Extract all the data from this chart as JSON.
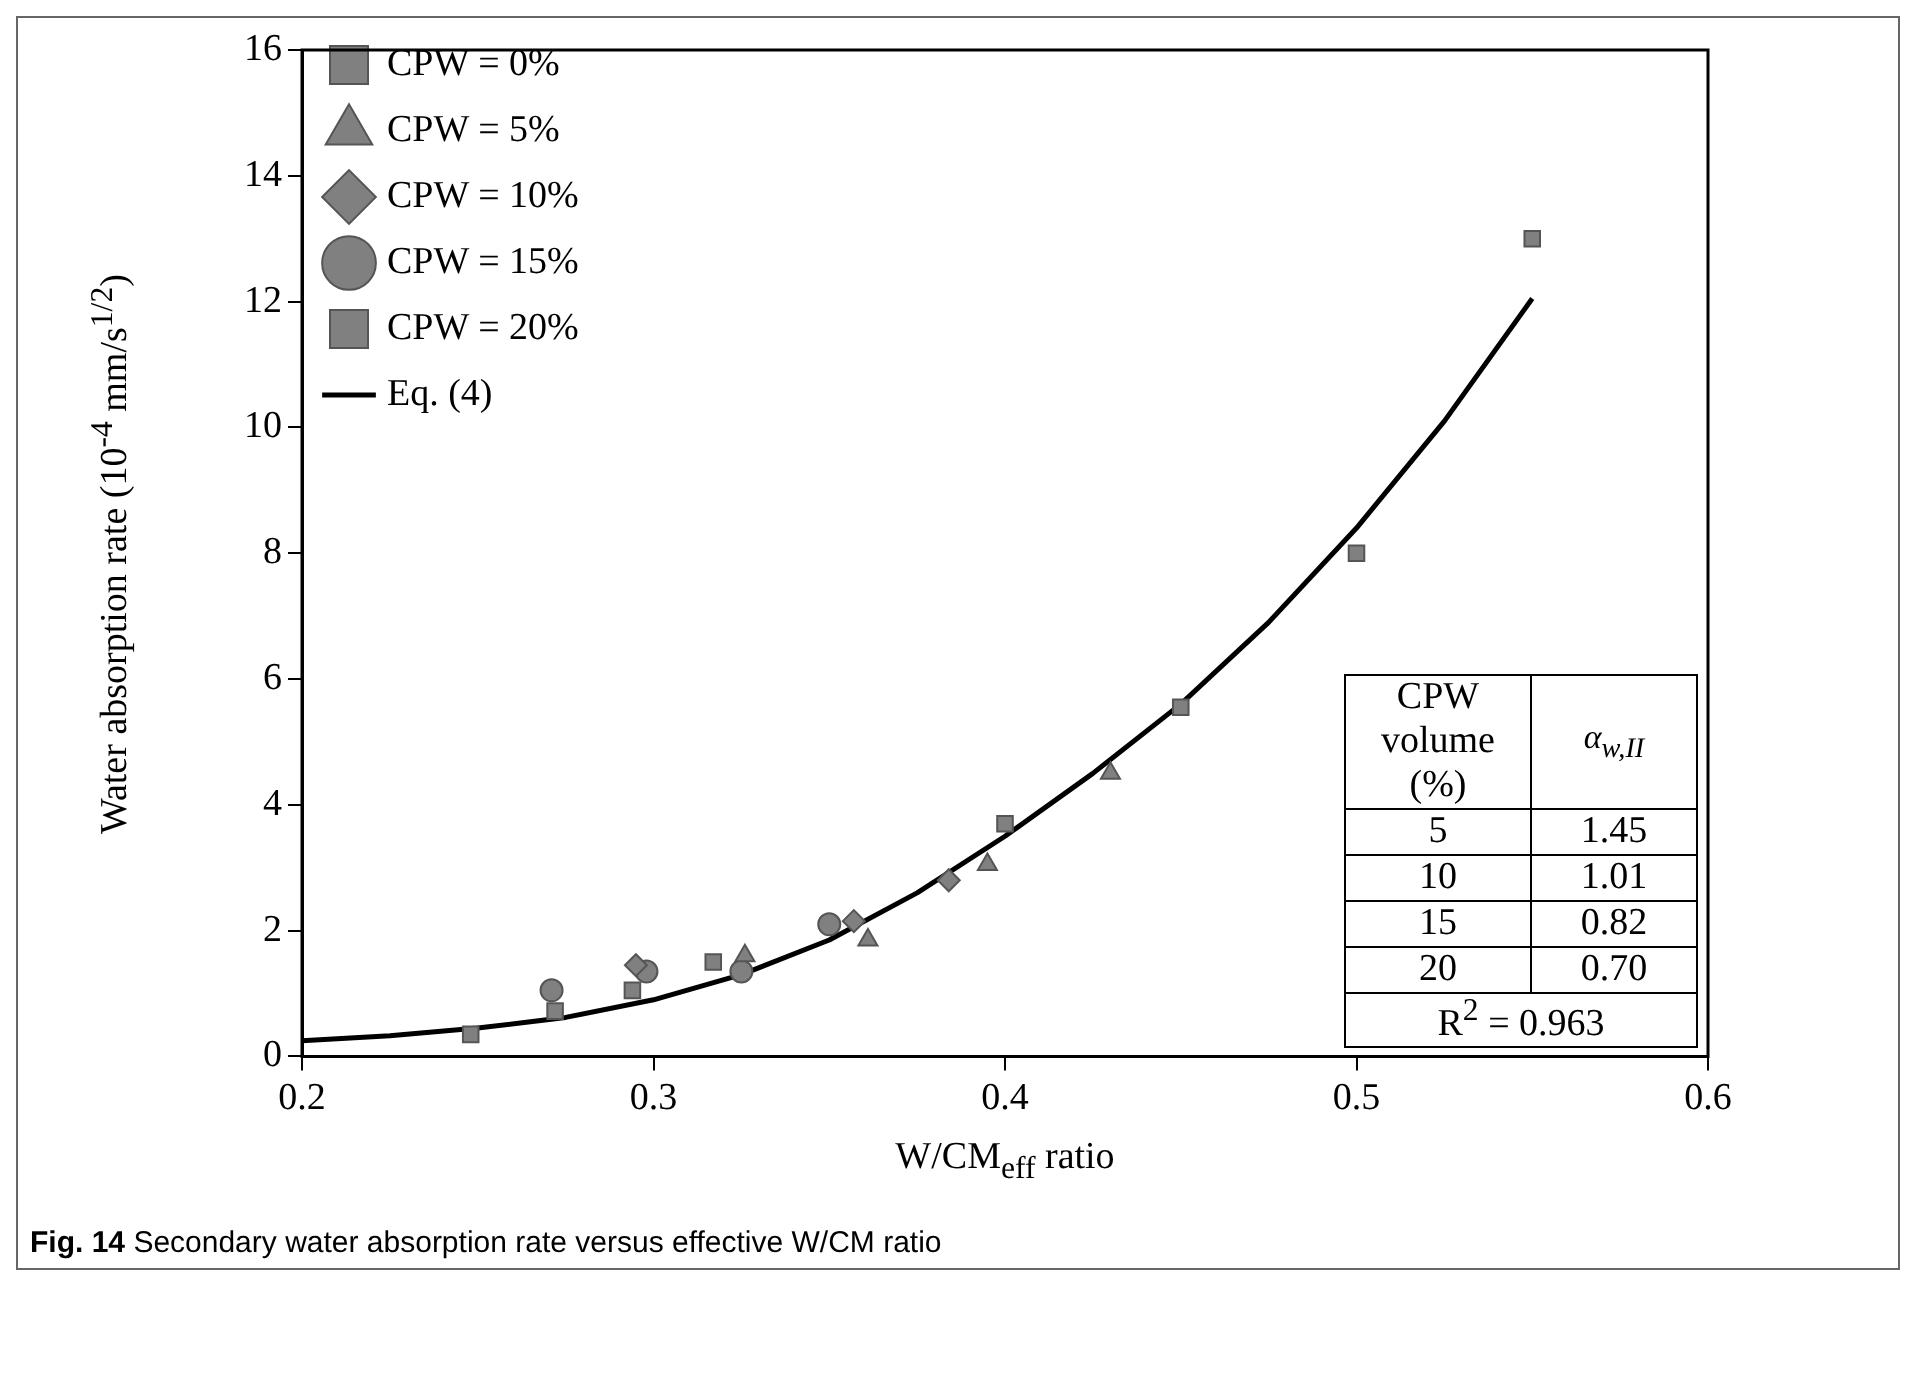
{
  "chart_data": {
    "type": "scatter",
    "xlabel": "W/CM$_{eff}$ ratio",
    "ylabel": "Water absorption rate (10$^{-4}$ mm/s$^{1/2}$)",
    "xlim": [
      0.2,
      0.6
    ],
    "xticks": [
      0.2,
      0.3,
      0.4,
      0.5,
      0.6
    ],
    "ylim": [
      0,
      16
    ],
    "yticks": [
      0,
      2,
      4,
      6,
      8,
      10,
      12,
      14,
      16
    ],
    "grid": false,
    "legend": "top left",
    "series": [
      {
        "name": "CPW = 0%",
        "color": "#808080",
        "marker": "square",
        "x": [
          0.4,
          0.45,
          0.5,
          0.55
        ],
        "values": [
          3.7,
          5.55,
          8.0,
          13.0
        ]
      },
      {
        "name": "CPW = 5%",
        "color": "#808080",
        "marker": "triangle",
        "x": [
          0.326,
          0.361,
          0.395,
          0.43
        ],
        "values": [
          1.6,
          1.85,
          3.05,
          4.5
        ]
      },
      {
        "name": "CPW = 10%",
        "color": "#808080",
        "marker": "diamond",
        "x": [
          0.295,
          0.357,
          0.384
        ],
        "values": [
          1.45,
          2.15,
          2.8
        ]
      },
      {
        "name": "CPW = 15%",
        "color": "#808080",
        "marker": "circle",
        "x": [
          0.271,
          0.298,
          0.325,
          0.35
        ],
        "values": [
          1.05,
          1.35,
          1.35,
          2.1
        ]
      },
      {
        "name": "CPW = 20%",
        "color": "#808080",
        "marker": "square",
        "x": [
          0.248,
          0.272,
          0.294,
          0.317
        ],
        "values": [
          0.35,
          0.72,
          1.05,
          1.5
        ]
      },
      {
        "name": "Eq. (4)",
        "type": "line",
        "color": "#000000",
        "marker": "none",
        "x": [
          0.2,
          0.225,
          0.25,
          0.275,
          0.3,
          0.325,
          0.35,
          0.375,
          0.4,
          0.425,
          0.45,
          0.475,
          0.5,
          0.525,
          0.55
        ],
        "values": [
          0.25,
          0.33,
          0.45,
          0.62,
          0.9,
          1.3,
          1.85,
          2.6,
          3.5,
          4.5,
          5.6,
          6.9,
          8.4,
          10.1,
          12.05
        ]
      }
    ],
    "annotations": [
      "Fig. 14",
      "Secondary water absorption rate versus effective W/CM ratio",
      "CPW volume (%)",
      "α$_{w,II}$",
      "5",
      "1.45",
      "10",
      "1.01",
      "15",
      "0.82",
      "20",
      "0.70",
      "R$^{2}$ = 0.963"
    ]
  }
}
